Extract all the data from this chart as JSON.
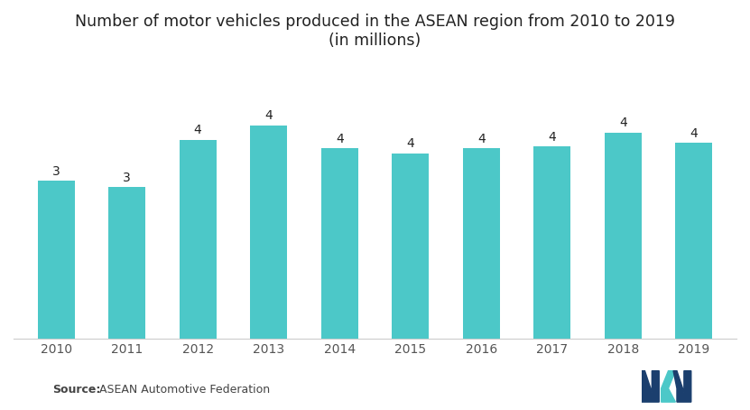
{
  "title_line1": "Number of motor vehicles produced in the ASEAN region from 2010 to 2019",
  "title_line2": "(in millions)",
  "categories": [
    "2010",
    "2011",
    "2012",
    "2013",
    "2014",
    "2015",
    "2016",
    "2017",
    "2018",
    "2019"
  ],
  "values": [
    3.0,
    2.88,
    3.78,
    4.05,
    3.62,
    3.52,
    3.62,
    3.65,
    3.92,
    3.72
  ],
  "bar_color": "#4CC8C8",
  "bar_labels": [
    "3",
    "3",
    "4",
    "4",
    "4",
    "4",
    "4",
    "4",
    "4",
    "4"
  ],
  "background_color": "#ffffff",
  "source_bold": "Source:",
  "source_text": " ASEAN Automotive Federation",
  "ylim": [
    0,
    5.2
  ],
  "title_fontsize": 12.5,
  "label_fontsize": 10,
  "tick_fontsize": 10,
  "source_fontsize": 9,
  "bar_width": 0.52
}
